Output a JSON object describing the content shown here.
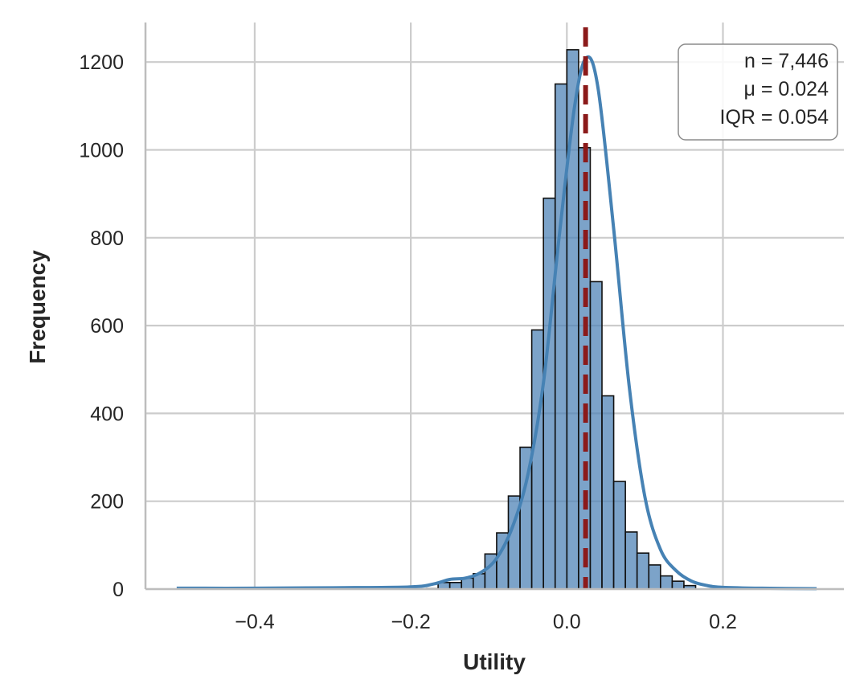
{
  "chart_data": {
    "type": "bar",
    "xlabel": "Utility",
    "ylabel": "Frequency",
    "xlim": [
      -0.54,
      0.355
    ],
    "ylim": [
      0,
      1290
    ],
    "x_ticks": [
      -0.4,
      -0.2,
      0.0,
      0.2
    ],
    "x_tick_labels": [
      "−0.4",
      "−0.2",
      "0.0",
      "0.2"
    ],
    "y_ticks": [
      0,
      200,
      400,
      600,
      800,
      1000,
      1200
    ],
    "y_tick_labels": [
      "0",
      "200",
      "400",
      "600",
      "800",
      "1000",
      "1200"
    ],
    "grid": true,
    "bin_width": 0.015,
    "bin_start": -0.18,
    "bin_counts": [
      1,
      15,
      15,
      25,
      35,
      80,
      128,
      212,
      323,
      590,
      890,
      1150,
      1228,
      1005,
      700,
      440,
      245,
      130,
      82,
      55,
      30,
      18,
      8
    ],
    "bar_color": "#4a7fb4",
    "kde": {
      "color": "#4682b4",
      "x": [
        -0.5,
        -0.4,
        -0.3,
        -0.2,
        -0.17,
        -0.15,
        -0.13,
        -0.11,
        -0.09,
        -0.07,
        -0.05,
        -0.03,
        -0.01,
        0.01,
        0.025,
        0.04,
        0.06,
        0.08,
        0.1,
        0.12,
        0.14,
        0.16,
        0.18,
        0.2,
        0.25,
        0.32
      ],
      "y": [
        2,
        2,
        3,
        5,
        12,
        22,
        25,
        38,
        70,
        140,
        260,
        470,
        800,
        1100,
        1210,
        1140,
        820,
        460,
        210,
        90,
        42,
        18,
        8,
        4,
        2,
        1
      ]
    },
    "mean_line": {
      "x": 0.024,
      "color": "#8b1a1a",
      "style": "dashed"
    }
  },
  "stats_box": {
    "n_line": "n = 7,446",
    "mu_line": "μ = 0.024",
    "iqr_line": "IQR = 0.054",
    "placement": "top-right"
  }
}
